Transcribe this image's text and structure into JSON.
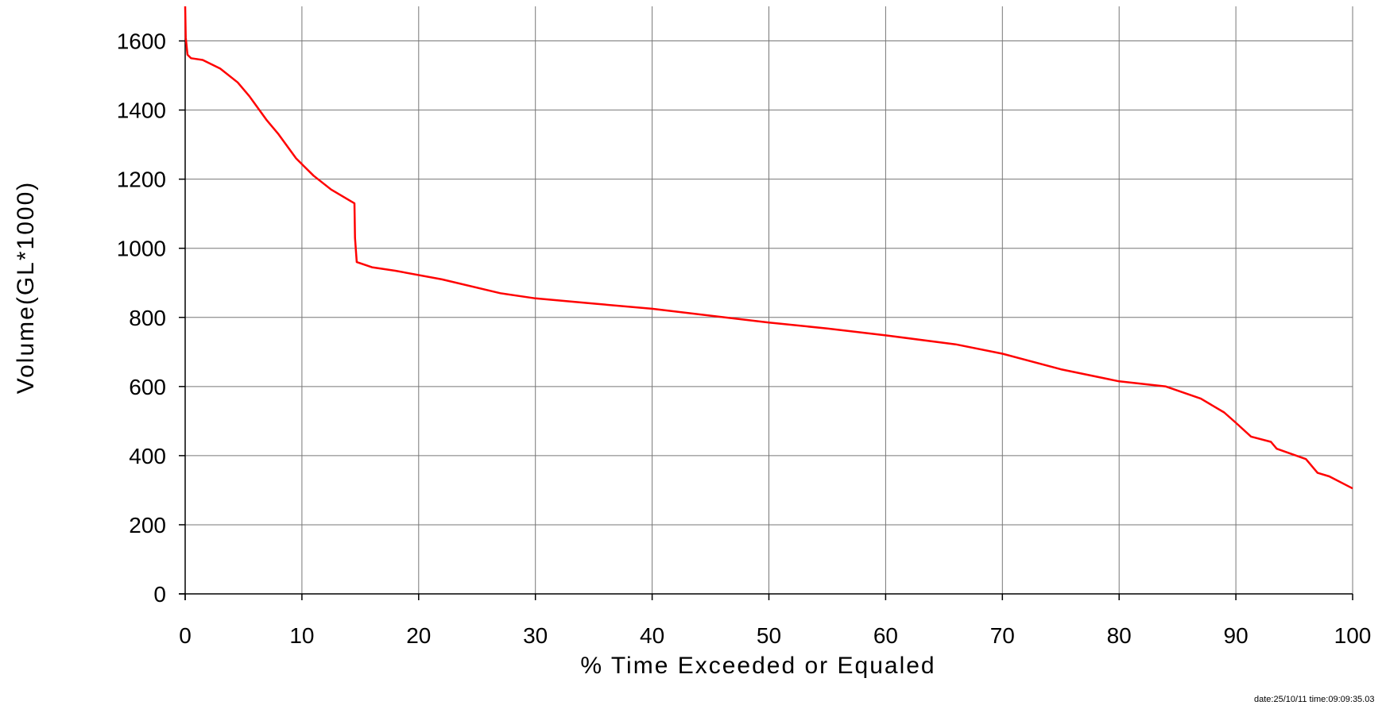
{
  "chart_data": {
    "type": "line",
    "title": "",
    "xlabel": "% Time Exceeded or Equaled",
    "ylabel": "Volume(GL*1000)",
    "xlim": [
      0,
      100
    ],
    "ylim": [
      0,
      1700
    ],
    "x_ticks": [
      0,
      10,
      20,
      30,
      40,
      50,
      60,
      70,
      80,
      90,
      100
    ],
    "y_ticks": [
      0,
      200,
      400,
      600,
      800,
      1000,
      1200,
      1400,
      1600
    ],
    "grid": true,
    "legend": "none",
    "series": [
      {
        "color": "#ff0000",
        "x": [
          0,
          0.05,
          0.2,
          0.5,
          1.5,
          3,
          4.5,
          5.5,
          7,
          8,
          9.5,
          11,
          12.5,
          14.5,
          14.55,
          14.7,
          16,
          18,
          22,
          27,
          30,
          35,
          40,
          45,
          50,
          55,
          60,
          66,
          70,
          75,
          80,
          84,
          87,
          89,
          90,
          91.3,
          93,
          93.5,
          96,
          97,
          98,
          100
        ],
        "y": [
          1700,
          1610,
          1560,
          1550,
          1545,
          1520,
          1480,
          1440,
          1370,
          1330,
          1260,
          1210,
          1170,
          1130,
          1030,
          960,
          945,
          935,
          910,
          870,
          855,
          840,
          825,
          805,
          785,
          768,
          748,
          722,
          695,
          650,
          615,
          600,
          565,
          525,
          495,
          455,
          440,
          420,
          390,
          350,
          340,
          305
        ]
      }
    ],
    "footer": "date:25/10/11  time:09:09:35.03"
  }
}
